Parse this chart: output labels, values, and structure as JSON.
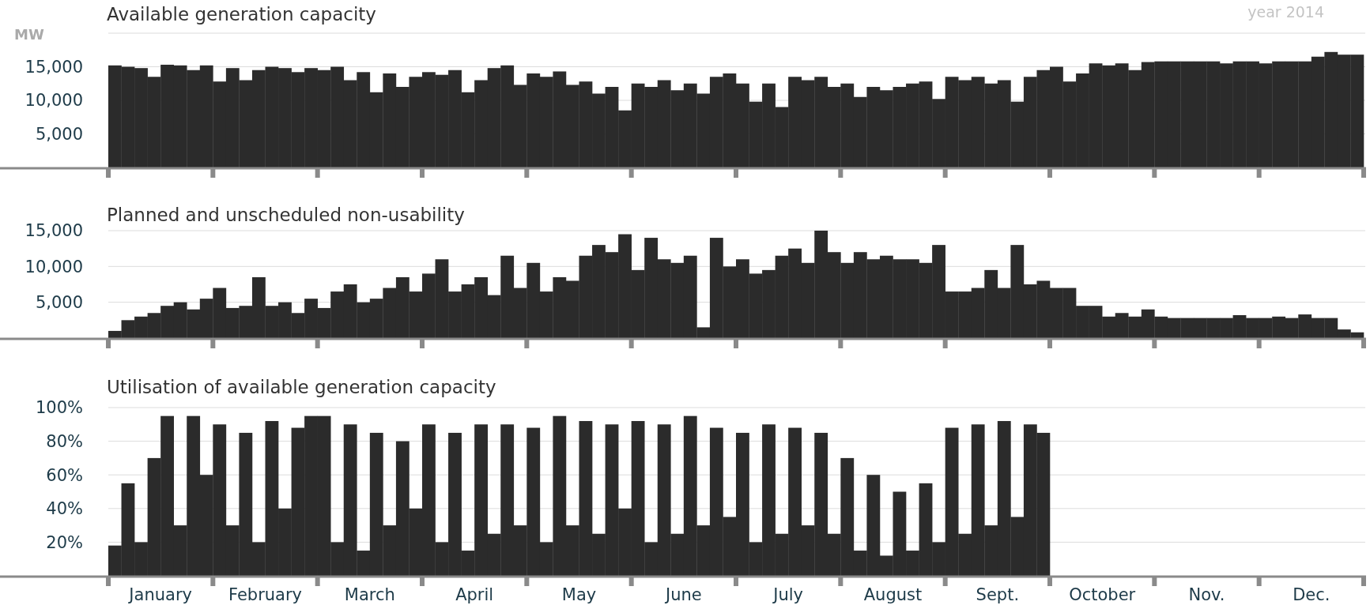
{
  "chart_data": [
    {
      "type": "bar",
      "title": "Available generation capacity",
      "ylabel": "MW",
      "annotations": [
        "year 2014"
      ],
      "grid": "y",
      "tick_labels": "y",
      "categories": [
        null,
        null,
        null,
        null,
        null,
        null,
        null,
        null,
        null,
        null,
        null,
        null,
        null,
        null,
        null,
        null,
        null,
        null,
        null,
        null,
        null,
        null,
        null,
        null,
        null,
        null,
        null,
        null,
        null,
        null,
        null,
        null,
        null,
        null,
        null,
        null,
        null,
        null,
        null,
        null,
        null,
        null,
        null,
        null,
        null,
        null,
        null,
        null,
        null,
        null,
        null,
        null,
        null,
        null,
        null,
        null,
        null,
        null,
        null,
        null,
        null,
        null,
        null,
        null,
        null,
        null,
        null,
        null,
        null,
        null,
        null,
        null,
        null,
        null,
        null,
        null,
        null,
        null,
        null,
        null,
        null,
        null,
        null,
        null,
        null,
        null,
        null,
        null,
        null,
        null,
        null,
        null,
        null,
        null,
        null,
        null
      ],
      "ylim": [
        0,
        20000
      ],
      "yticks": [
        {
          "value": 5000,
          "label": "5,000"
        },
        {
          "value": 10000,
          "label": "10,000"
        },
        {
          "value": 15000,
          "label": "15,000"
        },
        {
          "value": 20000,
          "label": null
        }
      ],
      "series": [
        {
          "color": "#2b2b2b",
          "values": [
            15200,
            15000,
            14800,
            13500,
            15300,
            15200,
            14500,
            15200,
            12800,
            14800,
            13000,
            14500,
            15000,
            14800,
            14200,
            14800,
            14500,
            15000,
            13000,
            14200,
            11200,
            14000,
            12000,
            13500,
            14200,
            13800,
            14500,
            11200,
            13000,
            14800,
            15200,
            12300,
            14000,
            13500,
            14300,
            12300,
            12800,
            11000,
            12000,
            8500,
            12500,
            12000,
            13000,
            11500,
            12500,
            11000,
            13500,
            14000,
            12500,
            9800,
            12500,
            9000,
            13500,
            13000,
            13500,
            12000,
            12500,
            10500,
            12000,
            11500,
            12000,
            12500,
            12800,
            10200,
            13500,
            13000,
            13500,
            12500,
            13000,
            9800,
            13500,
            14500,
            15000,
            12800,
            14000,
            15500,
            15200,
            15500,
            14500,
            15700,
            15800,
            15800,
            15800,
            15800,
            15800,
            15500,
            15800,
            15800,
            15500,
            15800,
            15800,
            15800,
            16500,
            17200,
            16800,
            16800
          ]
        }
      ]
    },
    {
      "type": "bar",
      "title": "Planned and unscheduled non-usability",
      "grid": "y",
      "tick_labels": "y",
      "categories": [
        null,
        null,
        null,
        null,
        null,
        null,
        null,
        null,
        null,
        null,
        null,
        null,
        null,
        null,
        null,
        null,
        null,
        null,
        null,
        null,
        null,
        null,
        null,
        null,
        null,
        null,
        null,
        null,
        null,
        null,
        null,
        null,
        null,
        null,
        null,
        null,
        null,
        null,
        null,
        null,
        null,
        null,
        null,
        null,
        null,
        null,
        null,
        null,
        null,
        null,
        null,
        null,
        null,
        null,
        null,
        null,
        null,
        null,
        null,
        null,
        null,
        null,
        null,
        null,
        null,
        null,
        null,
        null,
        null,
        null,
        null,
        null,
        null,
        null,
        null,
        null,
        null,
        null,
        null,
        null,
        null,
        null,
        null,
        null,
        null,
        null,
        null,
        null,
        null,
        null,
        null,
        null,
        null,
        null,
        null,
        null
      ],
      "ylim": [
        0,
        15000
      ],
      "yticks": [
        {
          "value": 5000,
          "label": "5,000"
        },
        {
          "value": 10000,
          "label": "10,000"
        },
        {
          "value": 15000,
          "label": "15,000"
        }
      ],
      "series": [
        {
          "color": "#2b2b2b",
          "values": [
            1000,
            2500,
            3000,
            3500,
            4500,
            5000,
            4000,
            5500,
            7000,
            4200,
            4500,
            8500,
            4500,
            5000,
            3500,
            5500,
            4200,
            6500,
            7500,
            5000,
            5500,
            7000,
            8500,
            6500,
            9000,
            11000,
            6500,
            7500,
            8500,
            6000,
            11500,
            7000,
            10500,
            6500,
            8500,
            8000,
            11500,
            13000,
            12000,
            14500,
            9500,
            14000,
            11000,
            10500,
            11500,
            1500,
            14000,
            10000,
            11000,
            9000,
            9500,
            11500,
            12500,
            10500,
            15000,
            12000,
            10500,
            12000,
            11000,
            11500,
            11000,
            11000,
            10500,
            13000,
            6500,
            6500,
            7000,
            9500,
            7000,
            13000,
            7500,
            8000,
            7000,
            7000,
            4500,
            4500,
            3000,
            3500,
            3000,
            4000,
            3000,
            2800,
            2800,
            2800,
            2800,
            2800,
            3200,
            2800,
            2800,
            3000,
            2800,
            3300,
            2800,
            2800,
            1200,
            800
          ]
        }
      ]
    },
    {
      "type": "bar",
      "title": "Utilisation of available generation capacity",
      "grid": "y",
      "categories": [
        null,
        null,
        null,
        null,
        "January",
        null,
        null,
        null,
        null,
        null,
        null,
        null,
        "February",
        null,
        null,
        null,
        null,
        null,
        null,
        null,
        "March",
        null,
        null,
        null,
        null,
        null,
        null,
        null,
        "April",
        null,
        null,
        null,
        null,
        null,
        null,
        null,
        "May",
        null,
        null,
        null,
        null,
        null,
        null,
        null,
        "June",
        null,
        null,
        null,
        null,
        null,
        null,
        null,
        "July",
        null,
        null,
        null,
        null,
        null,
        null,
        null,
        "August",
        null,
        null,
        null,
        null,
        null,
        null,
        null,
        "Sept.",
        null,
        null,
        null,
        null,
        null,
        null,
        null,
        "October",
        null,
        null,
        null,
        null,
        null,
        null,
        null,
        "Nov.",
        null,
        null,
        null,
        null,
        null,
        null,
        null,
        "Dec.",
        null,
        null,
        null
      ],
      "ylim": [
        0,
        100
      ],
      "yticks": [
        {
          "value": 20,
          "label": "20%"
        },
        {
          "value": 40,
          "label": "40%"
        },
        {
          "value": 60,
          "label": "60%"
        },
        {
          "value": 80,
          "label": "80%"
        },
        {
          "value": 100,
          "label": "100%"
        }
      ],
      "series": [
        {
          "color": "#2b2b2b",
          "values": [
            18,
            55,
            20,
            70,
            95,
            30,
            95,
            60,
            90,
            30,
            85,
            20,
            92,
            40,
            88,
            95,
            95,
            20,
            90,
            15,
            85,
            30,
            80,
            40,
            90,
            20,
            85,
            15,
            90,
            25,
            90,
            30,
            88,
            20,
            95,
            30,
            92,
            25,
            90,
            40,
            92,
            20,
            90,
            25,
            95,
            30,
            88,
            35,
            85,
            20,
            90,
            25,
            88,
            30,
            85,
            25,
            70,
            15,
            60,
            12,
            50,
            15,
            55,
            20,
            88,
            25,
            90,
            30,
            92,
            35,
            90,
            85,
            null,
            null,
            null,
            null,
            null,
            null,
            null,
            null,
            null,
            null,
            null,
            null,
            null,
            null,
            null,
            null,
            null,
            null,
            null,
            null,
            null,
            null,
            null,
            null
          ]
        }
      ]
    }
  ]
}
